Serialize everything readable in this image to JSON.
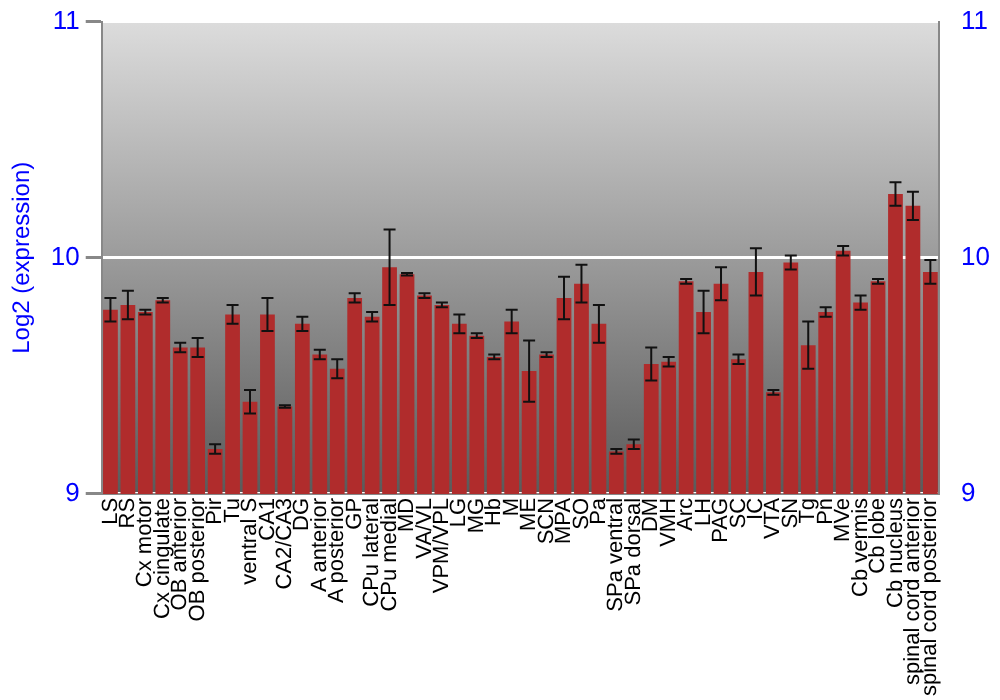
{
  "chart_data": {
    "type": "bar",
    "ylabel": "Log2 (expression)",
    "categories": [
      "LS",
      "RS",
      "Cx motor",
      "Cx cingulate",
      "OB anterior",
      "OB posterior",
      "Pir",
      "Tu",
      "ventral S",
      "CA1",
      "CA2/CA3",
      "DG",
      "A anterior",
      "A posterior",
      "GP",
      "CPu lateral",
      "CPu medial",
      "MD",
      "VA/VL",
      "VPM/VPL",
      "LG",
      "MG",
      "Hb",
      "M",
      "ME",
      "SCN",
      "MPA",
      "SO",
      "Pa",
      "SPa ventral",
      "SPa dorsal",
      "DM",
      "VMH",
      "Arc",
      "LH",
      "PAG",
      "SC",
      "IC",
      "VTA",
      "SN",
      "Tg",
      "Pn",
      "MVe",
      "Cb vermis",
      "Cb lobe",
      "Cb nucleus",
      "spinal cord anterior",
      "spinal cord posterior"
    ],
    "values": [
      9.78,
      9.8,
      9.77,
      9.82,
      9.62,
      9.62,
      9.19,
      9.76,
      9.39,
      9.76,
      9.37,
      9.72,
      9.59,
      9.53,
      9.83,
      9.75,
      9.96,
      9.93,
      9.84,
      9.8,
      9.72,
      9.67,
      9.58,
      9.73,
      9.52,
      9.59,
      9.83,
      9.89,
      9.72,
      9.18,
      9.21,
      9.55,
      9.56,
      9.9,
      9.77,
      9.89,
      9.57,
      9.94,
      9.43,
      9.98,
      9.63,
      9.77,
      10.03,
      9.81,
      9.9,
      10.27,
      10.22,
      9.94
    ],
    "errors": [
      0.05,
      0.06,
      0.01,
      0.01,
      0.02,
      0.04,
      0.02,
      0.04,
      0.05,
      0.07,
      0.005,
      0.03,
      0.02,
      0.04,
      0.02,
      0.02,
      0.16,
      0.005,
      0.01,
      0.01,
      0.04,
      0.01,
      0.01,
      0.05,
      0.13,
      0.01,
      0.09,
      0.08,
      0.08,
      0.01,
      0.02,
      0.07,
      0.02,
      0.01,
      0.09,
      0.07,
      0.02,
      0.1,
      0.01,
      0.03,
      0.1,
      0.02,
      0.02,
      0.03,
      0.01,
      0.05,
      0.06,
      0.05
    ],
    "color": "#b02c2c",
    "ylim": [
      9,
      11
    ],
    "yticks": [
      9,
      10,
      11
    ],
    "y2lim": [
      9,
      11
    ],
    "y2ticks": [
      9,
      10,
      11
    ],
    "grid": "y",
    "legend": false
  }
}
